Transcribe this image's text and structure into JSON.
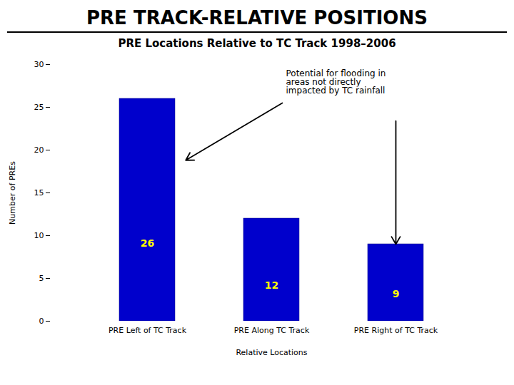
{
  "chart_data": {
    "type": "bar",
    "title": "PRE TRACK-RELATIVE POSITIONS",
    "subtitle": "PRE Locations Relative to TC Track 1998–2006",
    "categories": [
      "PRE Left of TC Track",
      "PRE Along TC Track",
      "PRE Right of TC Track"
    ],
    "values": [
      26,
      12,
      9
    ],
    "color": "#0000CC",
    "xlabel": "Relative Locations",
    "ylabel": "Number of PREs",
    "ylim": [
      0,
      30
    ],
    "yticks": [
      0,
      5,
      10,
      15,
      20,
      25,
      30
    ],
    "grid": false,
    "data_labels": true,
    "annotations": [
      "Potential for flooding in\nareas not directly\nimpacted by TC rainfall"
    ]
  }
}
